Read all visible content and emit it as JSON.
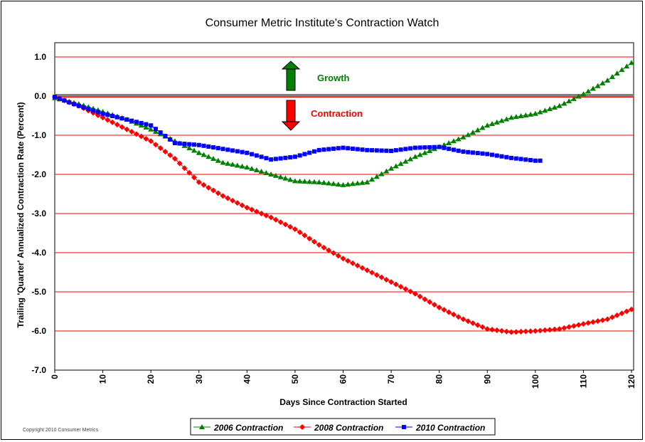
{
  "chart_data": {
    "type": "line",
    "title": "Consumer Metric Institute's Contraction Watch",
    "xlabel": "Days Since Contraction Started",
    "ylabel": "Trailing 'Quarter' Annualized Contraction Rate (Percent)",
    "xlim": [
      0,
      120
    ],
    "ylim": [
      -7,
      1
    ],
    "x_ticks": [
      "0",
      "10",
      "20",
      "30",
      "40",
      "50",
      "60",
      "70",
      "80",
      "90",
      "100",
      "110",
      "120"
    ],
    "y_ticks": [
      "1.0",
      "0.0",
      "-1.0",
      "-2.0",
      "-3.0",
      "-4.0",
      "-5.0",
      "-6.0",
      "-7.0"
    ],
    "grid": true,
    "annotations": {
      "growth": "Growth",
      "contraction": "Contraction"
    },
    "legend_position": "bottom",
    "x": [
      0,
      5,
      10,
      15,
      20,
      25,
      30,
      35,
      40,
      45,
      50,
      55,
      60,
      65,
      70,
      75,
      80,
      85,
      90,
      95,
      100,
      105,
      110,
      115,
      120
    ],
    "series": [
      {
        "name": "2006 Contraction",
        "color": "#008000",
        "marker": "triangle",
        "values": [
          -0.05,
          -0.2,
          -0.4,
          -0.6,
          -0.85,
          -1.15,
          -1.45,
          -1.7,
          -1.82,
          -2.0,
          -2.17,
          -2.2,
          -2.27,
          -2.2,
          -1.85,
          -1.55,
          -1.3,
          -1.05,
          -0.75,
          -0.55,
          -0.45,
          -0.25,
          0.05,
          0.4,
          0.85
        ]
      },
      {
        "name": "2008 Contraction",
        "color": "#ff0000",
        "marker": "diamond",
        "values": [
          -0.02,
          -0.25,
          -0.55,
          -0.85,
          -1.15,
          -1.6,
          -2.2,
          -2.55,
          -2.85,
          -3.1,
          -3.4,
          -3.8,
          -4.15,
          -4.45,
          -4.75,
          -5.05,
          -5.4,
          -5.7,
          -5.95,
          -6.03,
          -6.0,
          -5.95,
          -5.82,
          -5.7,
          -5.45
        ]
      },
      {
        "name": "2010 Contraction",
        "color": "#0000ff",
        "marker": "square",
        "last_day": 101,
        "values": [
          -0.02,
          -0.25,
          -0.45,
          -0.6,
          -0.75,
          -1.2,
          -1.25,
          -1.35,
          -1.45,
          -1.62,
          -1.55,
          -1.38,
          -1.32,
          -1.38,
          -1.4,
          -1.32,
          -1.3,
          -1.42,
          -1.48,
          -1.58,
          -1.65,
          -1.65,
          null,
          null,
          null
        ]
      }
    ]
  },
  "copyright": "Copyright 2010 Consumer Metrics"
}
